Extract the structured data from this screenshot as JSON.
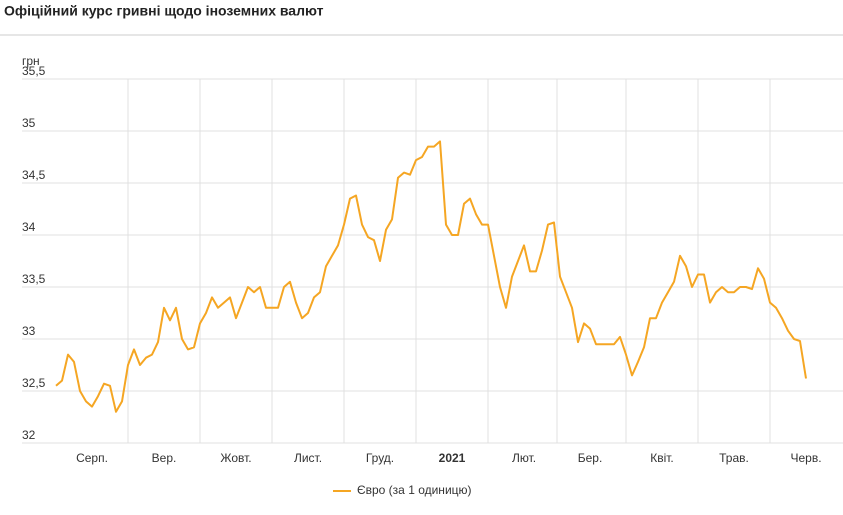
{
  "chart_data": {
    "type": "line",
    "title": "Офіційний курс гривні щодо іноземних валют",
    "y_label": "грн",
    "categories": [
      null,
      null,
      null,
      null,
      null,
      null,
      "Серп.",
      null,
      null,
      null,
      null,
      null,
      null,
      null,
      null,
      null,
      null,
      null,
      "Вер.",
      null,
      null,
      null,
      null,
      null,
      null,
      null,
      null,
      null,
      null,
      null,
      "Жовт.",
      null,
      null,
      null,
      null,
      null,
      null,
      null,
      null,
      null,
      null,
      null,
      "Лист.",
      null,
      null,
      null,
      null,
      null,
      null,
      null,
      null,
      null,
      null,
      null,
      "Груд.",
      null,
      null,
      null,
      null,
      null,
      null,
      null,
      null,
      null,
      null,
      null,
      "2021",
      null,
      null,
      null,
      null,
      null,
      null,
      null,
      null,
      null,
      null,
      null,
      "Лют.",
      null,
      null,
      null,
      null,
      null,
      null,
      null,
      null,
      null,
      null,
      "Бер.",
      null,
      null,
      null,
      null,
      null,
      null,
      null,
      null,
      null,
      null,
      null,
      "Квіт.",
      null,
      null,
      null,
      null,
      null,
      null,
      null,
      null,
      null,
      null,
      null,
      "Трав.",
      null,
      null,
      null,
      null,
      null,
      null,
      null,
      null,
      null,
      null,
      null,
      "Черв."
    ],
    "series": [
      {
        "name": "Євро (за 1 одиницю)",
        "color": "#f5a623",
        "values": [
          32.55,
          32.6,
          32.85,
          32.78,
          32.5,
          32.4,
          32.35,
          32.45,
          32.57,
          32.55,
          32.3,
          32.4,
          32.75,
          32.9,
          32.75,
          32.82,
          32.85,
          32.97,
          33.3,
          33.18,
          33.3,
          33.0,
          32.9,
          32.92,
          33.15,
          33.25,
          33.4,
          33.3,
          33.35,
          33.4,
          33.2,
          33.35,
          33.5,
          33.45,
          33.5,
          33.3,
          33.3,
          33.3,
          33.5,
          33.55,
          33.35,
          33.2,
          33.25,
          33.4,
          33.45,
          33.7,
          33.8,
          33.9,
          34.1,
          34.35,
          34.38,
          34.1,
          33.98,
          33.95,
          33.75,
          34.05,
          34.15,
          34.55,
          34.6,
          34.58,
          34.72,
          34.75,
          34.85,
          34.85,
          34.9,
          34.1,
          34.0,
          34.0,
          34.3,
          34.35,
          34.2,
          34.1,
          34.1,
          33.8,
          33.5,
          33.3,
          33.6,
          33.75,
          33.9,
          33.65,
          33.65,
          33.85,
          34.1,
          34.12,
          33.6,
          33.45,
          33.3,
          32.97,
          33.15,
          33.1,
          32.95,
          32.95,
          32.95,
          32.95,
          33.02,
          32.85,
          32.65,
          32.78,
          32.92,
          33.2,
          33.2,
          33.35,
          33.45,
          33.55,
          33.8,
          33.7,
          33.5,
          33.62,
          33.62,
          33.35,
          33.45,
          33.5,
          33.45,
          33.45,
          33.5,
          33.5,
          33.48,
          33.68,
          33.58,
          33.35,
          33.3,
          33.2,
          33.08,
          33.0,
          32.98,
          32.62
        ]
      }
    ],
    "ylim": [
      32,
      35.5
    ],
    "yticks": [
      32,
      {
        "value": 32.5,
        "label": "32,5"
      },
      33,
      {
        "value": 33.5,
        "label": "33,5"
      },
      34,
      {
        "value": 34.5,
        "label": "34,5"
      },
      35,
      {
        "value": 35.5,
        "label": "35,5"
      }
    ],
    "grid": true,
    "legend": "bottom"
  }
}
